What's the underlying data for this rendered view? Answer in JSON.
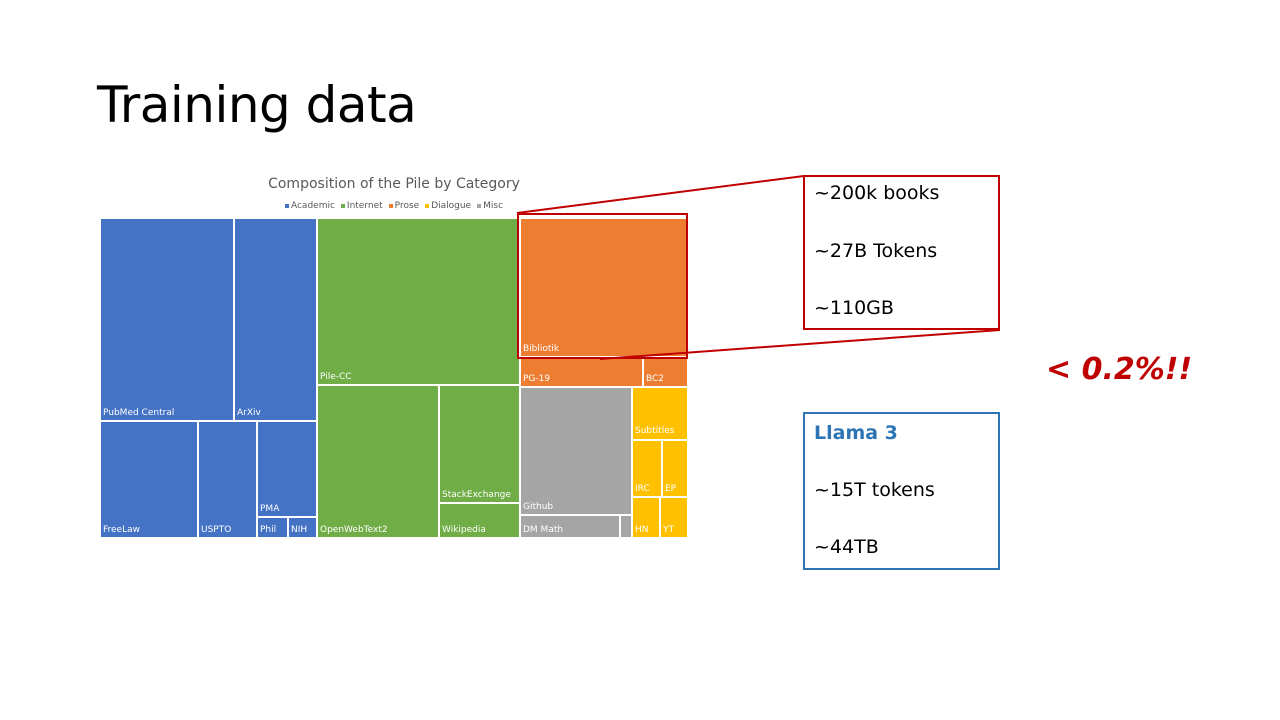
{
  "slide": {
    "title": "Training data"
  },
  "chart_data": {
    "type": "treemap",
    "title": "Composition of the Pile by Category",
    "legend": [
      {
        "name": "Academic",
        "color": "#4472c4"
      },
      {
        "name": "Internet",
        "color": "#70ad47"
      },
      {
        "name": "Prose",
        "color": "#ed7d31"
      },
      {
        "name": "Dialogue",
        "color": "#ffc000"
      },
      {
        "name": "Misc",
        "color": "#a5a5a5"
      }
    ],
    "legend_position": "top",
    "items": [
      {
        "label": "PubMed Central",
        "category": "Academic"
      },
      {
        "label": "ArXiv",
        "category": "Academic"
      },
      {
        "label": "FreeLaw",
        "category": "Academic"
      },
      {
        "label": "USPTO",
        "category": "Academic"
      },
      {
        "label": "PMA",
        "category": "Academic"
      },
      {
        "label": "Phil",
        "category": "Academic"
      },
      {
        "label": "NIH",
        "category": "Academic"
      },
      {
        "label": "Pile-CC",
        "category": "Internet"
      },
      {
        "label": "OpenWebText2",
        "category": "Internet"
      },
      {
        "label": "StackExchange",
        "category": "Internet"
      },
      {
        "label": "Wikipedia",
        "category": "Internet"
      },
      {
        "label": "Bibliotik",
        "category": "Prose"
      },
      {
        "label": "PG-19",
        "category": "Prose"
      },
      {
        "label": "BC2",
        "category": "Prose"
      },
      {
        "label": "Github",
        "category": "Misc"
      },
      {
        "label": "DM Math",
        "category": "Misc"
      },
      {
        "label": "",
        "category": "Misc"
      },
      {
        "label": "Subtitles",
        "category": "Dialogue"
      },
      {
        "label": "IRC",
        "category": "Dialogue"
      },
      {
        "label": "EP",
        "category": "Dialogue"
      },
      {
        "label": "HN",
        "category": "Dialogue"
      },
      {
        "label": "YT",
        "category": "Dialogue"
      }
    ]
  },
  "books_box": {
    "line1": "~200k books",
    "line2": "~27B Tokens",
    "line3": "~110GB"
  },
  "percent_note": "< 0.2%!!",
  "llama_box": {
    "title": "Llama 3",
    "line1": "~15T tokens",
    "line2": "~44TB"
  }
}
